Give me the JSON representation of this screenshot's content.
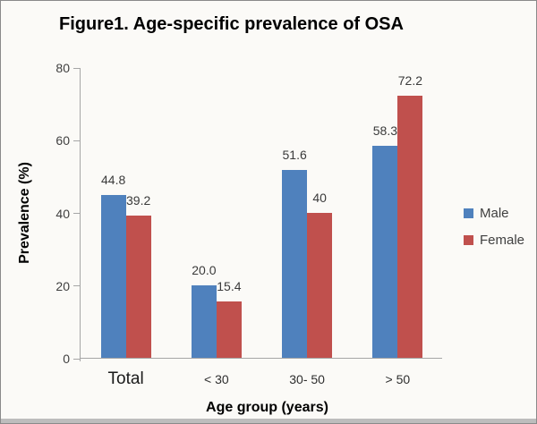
{
  "chart_data": {
    "type": "bar",
    "title": "Figure1. Age-specific prevalence of OSA",
    "xlabel": "Age group (years)",
    "ylabel": "Prevalence (%)",
    "categories": [
      "Total",
      "< 30",
      "30- 50",
      "> 50"
    ],
    "series": [
      {
        "name": "Male",
        "color": "#4F81BD",
        "values": [
          44.8,
          20.0,
          51.6,
          58.3
        ],
        "value_labels": [
          "44.8",
          "20.0",
          "51.6",
          "58.3"
        ]
      },
      {
        "name": "Female",
        "color": "#C0504D",
        "values": [
          39.2,
          15.4,
          40,
          72.2
        ],
        "value_labels": [
          "39.2",
          "15.4",
          "40",
          "72.2"
        ]
      }
    ],
    "ylim": [
      0,
      80
    ],
    "yticks": [
      0,
      20,
      40,
      60,
      80
    ],
    "grid": false,
    "legend_position": "right",
    "colors": {
      "axis_line": "#A6A6A6",
      "tick_text": "#3F3F3F",
      "title_text": "#000000"
    }
  }
}
